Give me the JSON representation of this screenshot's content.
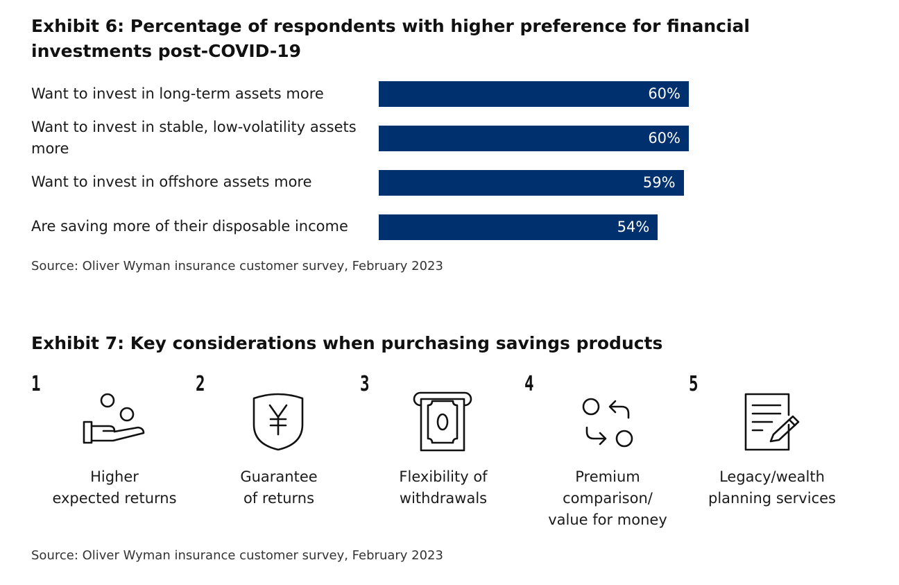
{
  "exhibit6": {
    "title": "Exhibit 6: Percentage of respondents with higher preference for financial investments post-COVID-19",
    "source": "Source: Oliver Wyman insurance customer survey, February 2023"
  },
  "chart_data": {
    "type": "bar",
    "orientation": "horizontal",
    "title": "Exhibit 6: Percentage of respondents with higher preference for financial investments post-COVID-19",
    "categories": [
      "Want to invest in long-term assets more",
      "Want to invest in stable, low-volatility assets more",
      "Want to invest in offshore assets more",
      "Are saving more of their disposable income"
    ],
    "values": [
      60,
      60,
      59,
      54
    ],
    "value_labels": [
      "60%",
      "60%",
      "59%",
      "54%"
    ],
    "xlim": [
      0,
      100
    ],
    "bar_color": "#00306e",
    "grid": false
  },
  "exhibit7": {
    "title": "Exhibit 7: Key considerations when purchasing savings products",
    "source": "Source: Oliver Wyman insurance customer survey, February 2023",
    "items": [
      {
        "number": "1",
        "label": "Higher\nexpected returns",
        "icon": "hand-coins-icon"
      },
      {
        "number": "2",
        "label": "Guarantee\nof returns",
        "icon": "yen-shield-icon"
      },
      {
        "number": "3",
        "label": "Flexibility of\nwithdrawals",
        "icon": "atm-cash-icon"
      },
      {
        "number": "4",
        "label": "Premium\ncomparison/\nvalue for money",
        "icon": "compare-arrows-icon"
      },
      {
        "number": "5",
        "label": "Legacy/wealth\nplanning services",
        "icon": "document-pen-icon"
      }
    ]
  }
}
